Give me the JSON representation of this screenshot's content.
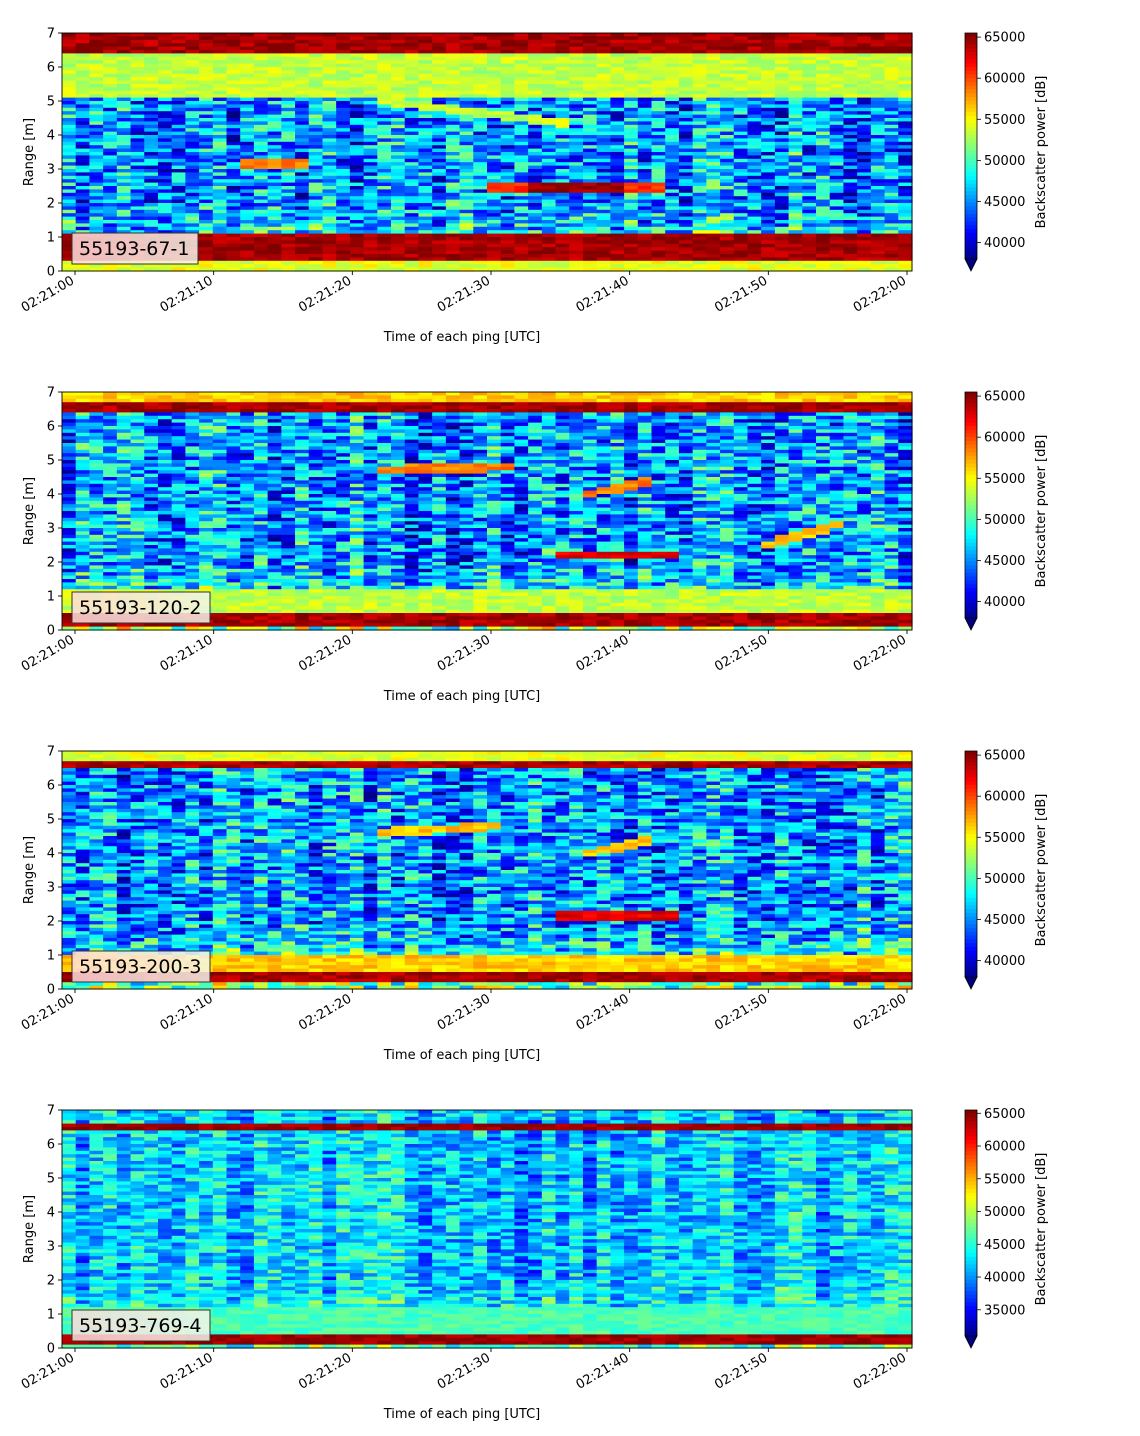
{
  "chart_data": [
    {
      "type": "heatmap",
      "label": "55193-67-1",
      "xlabel": "Time of each ping [UTC]",
      "ylabel": "Range [m]",
      "colorbar_label": "Backscatter power [dB]",
      "colormap": "jet",
      "colorbar_extend": "min",
      "x_ticks": [
        "02:21:00",
        "02:21:10",
        "02:21:20",
        "02:21:30",
        "02:21:40",
        "02:21:50",
        "02:22:00"
      ],
      "y_ticks": [
        0,
        1,
        2,
        3,
        4,
        5,
        6,
        7
      ],
      "ylim": [
        0,
        7
      ],
      "clim": [
        38000,
        65500
      ],
      "colorbar_ticks": [
        40000,
        45000,
        50000,
        55000,
        60000,
        65000
      ],
      "features": [
        {
          "kind": "band",
          "range": [
            0.25,
            1.1
          ],
          "value": 66000
        },
        {
          "kind": "band",
          "range": [
            6.4,
            7.0
          ],
          "value": 66000
        },
        {
          "kind": "band",
          "range": [
            5.1,
            6.4
          ],
          "value": 55000
        },
        {
          "kind": "band",
          "range": [
            0.0,
            0.25
          ],
          "value": 56000
        },
        {
          "kind": "line",
          "time": [
            12,
            17
          ],
          "range": [
            3.15,
            3.15
          ],
          "value": 60000
        },
        {
          "kind": "line",
          "time": [
            30,
            43
          ],
          "range": [
            2.45,
            2.45
          ],
          "value": 62000
        },
        {
          "kind": "line",
          "time": [
            33,
            40
          ],
          "range": [
            2.45,
            2.45
          ],
          "value": 66000
        },
        {
          "kind": "line",
          "time": [
            22,
            36
          ],
          "range": [
            5.0,
            4.3
          ],
          "value": 55000
        }
      ]
    },
    {
      "type": "heatmap",
      "label": "55193-120-2",
      "xlabel": "Time of each ping [UTC]",
      "ylabel": "Range [m]",
      "colorbar_label": "Backscatter power [dB]",
      "colormap": "jet",
      "colorbar_extend": "min",
      "x_ticks": [
        "02:21:00",
        "02:21:10",
        "02:21:20",
        "02:21:30",
        "02:21:40",
        "02:21:50",
        "02:22:00"
      ],
      "y_ticks": [
        0,
        1,
        2,
        3,
        4,
        5,
        6,
        7
      ],
      "ylim": [
        0,
        7
      ],
      "clim": [
        38000,
        65500
      ],
      "colorbar_ticks": [
        40000,
        45000,
        50000,
        55000,
        60000,
        65000
      ],
      "features": [
        {
          "kind": "band",
          "range": [
            0.1,
            0.55
          ],
          "value": 66000
        },
        {
          "kind": "band",
          "range": [
            0.55,
            1.2
          ],
          "value": 55000
        },
        {
          "kind": "band",
          "range": [
            6.4,
            6.75
          ],
          "value": 66000
        },
        {
          "kind": "band",
          "range": [
            6.75,
            7.0
          ],
          "value": 58000
        },
        {
          "kind": "line",
          "time": [
            35,
            44
          ],
          "range": [
            2.2,
            2.2
          ],
          "value": 64000
        },
        {
          "kind": "line",
          "time": [
            22,
            32
          ],
          "range": [
            4.7,
            4.8
          ],
          "value": 60000
        },
        {
          "kind": "line",
          "time": [
            37,
            42
          ],
          "range": [
            4.0,
            4.4
          ],
          "value": 60000
        },
        {
          "kind": "line",
          "time": [
            50,
            56
          ],
          "range": [
            2.5,
            3.2
          ],
          "value": 58000
        }
      ]
    },
    {
      "type": "heatmap",
      "label": "55193-200-3",
      "xlabel": "Time of each ping [UTC]",
      "ylabel": "Range [m]",
      "colorbar_label": "Backscatter power [dB]",
      "colormap": "jet",
      "colorbar_extend": "min",
      "x_ticks": [
        "02:21:00",
        "02:21:10",
        "02:21:20",
        "02:21:30",
        "02:21:40",
        "02:21:50",
        "02:22:00"
      ],
      "y_ticks": [
        0,
        1,
        2,
        3,
        4,
        5,
        6,
        7
      ],
      "ylim": [
        0,
        7
      ],
      "clim": [
        38000,
        65500
      ],
      "colorbar_ticks": [
        40000,
        45000,
        50000,
        55000,
        60000,
        65000
      ],
      "features": [
        {
          "kind": "band",
          "range": [
            0.2,
            0.5
          ],
          "value": 66000
        },
        {
          "kind": "band",
          "range": [
            0.5,
            1.0
          ],
          "value": 58000
        },
        {
          "kind": "band",
          "range": [
            6.5,
            6.7
          ],
          "value": 66000
        },
        {
          "kind": "band",
          "range": [
            6.7,
            7.0
          ],
          "value": 56000
        },
        {
          "kind": "line",
          "time": [
            35,
            44
          ],
          "range": [
            2.15,
            2.15
          ],
          "value": 64000
        },
        {
          "kind": "line",
          "time": [
            22,
            31
          ],
          "range": [
            4.6,
            4.8
          ],
          "value": 58000
        },
        {
          "kind": "line",
          "time": [
            37,
            42
          ],
          "range": [
            4.0,
            4.4
          ],
          "value": 58000
        }
      ]
    },
    {
      "type": "heatmap",
      "label": "55193-769-4",
      "xlabel": "Time of each ping [UTC]",
      "ylabel": "Range [m]",
      "colorbar_label": "Backscatter power [dB]",
      "colormap": "jet",
      "colorbar_extend": "min",
      "x_ticks": [
        "02:21:00",
        "02:21:10",
        "02:21:20",
        "02:21:30",
        "02:21:40",
        "02:21:50",
        "02:22:00"
      ],
      "y_ticks": [
        0,
        1,
        2,
        3,
        4,
        5,
        6,
        7
      ],
      "ylim": [
        0,
        7
      ],
      "clim": [
        31000,
        65500
      ],
      "colorbar_ticks": [
        35000,
        40000,
        45000,
        50000,
        55000,
        60000,
        65000
      ],
      "features": [
        {
          "kind": "band",
          "range": [
            0.15,
            0.4
          ],
          "value": 66000
        },
        {
          "kind": "band",
          "range": [
            6.4,
            6.55
          ],
          "value": 66000
        },
        {
          "kind": "band",
          "range": [
            0.4,
            1.2
          ],
          "value": 48000
        }
      ]
    }
  ]
}
